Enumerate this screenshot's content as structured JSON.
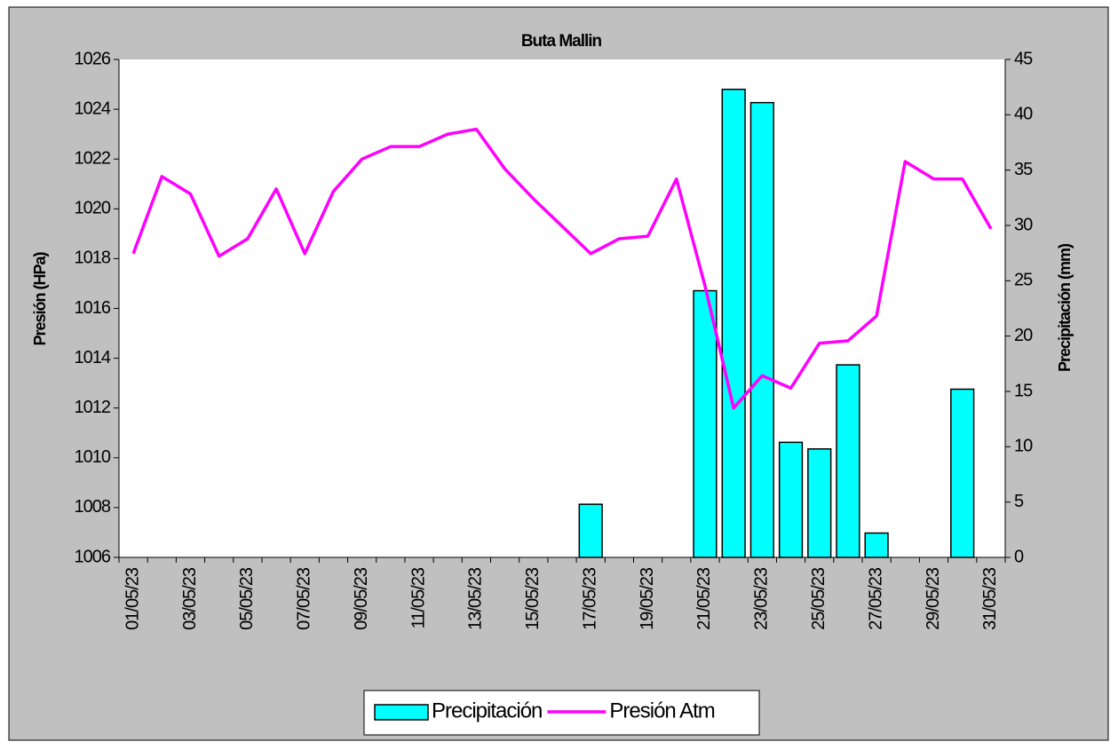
{
  "chart_data": {
    "type": "bar-line",
    "title": "Buta Mallin",
    "y_label": "Presión (HPa)",
    "y2_label": "Precipitación (mm)",
    "categories": [
      "01/05/23",
      null,
      "03/05/23",
      null,
      "05/05/23",
      null,
      "07/05/23",
      null,
      "09/05/23",
      null,
      "11/05/23",
      null,
      "13/05/23",
      null,
      "15/05/23",
      null,
      "17/05/23",
      null,
      "19/05/23",
      null,
      "21/05/23",
      null,
      "23/05/23",
      null,
      "25/05/23",
      null,
      "27/05/23",
      null,
      "29/05/23",
      null,
      "31/05/23"
    ],
    "series": [
      {
        "name": "Precipitación",
        "type": "bar",
        "axis": "y2",
        "color": "#00ffff",
        "values": [
          0,
          0,
          0,
          0,
          0,
          0,
          0,
          0,
          0,
          0,
          0,
          0,
          0,
          0,
          0,
          0,
          4.8,
          0,
          0,
          0,
          24.1,
          42.3,
          41.1,
          10.4,
          9.8,
          17.4,
          2.2,
          0,
          0,
          15.2,
          0
        ]
      },
      {
        "name": "Presión Atm",
        "type": "line",
        "axis": "y",
        "color": "#ff00ff",
        "values": [
          1018.2,
          1021.3,
          1020.6,
          1018.1,
          1018.8,
          1020.8,
          1018.2,
          1020.7,
          1022.0,
          1022.5,
          1022.5,
          1023.0,
          1023.2,
          1021.6,
          1020.4,
          1019.3,
          1018.2,
          1018.8,
          1018.9,
          1021.2,
          1016.9,
          1012.0,
          1013.3,
          1012.8,
          1014.6,
          1014.7,
          1015.7,
          1021.9,
          1021.2,
          1021.2,
          1019.2
        ]
      }
    ],
    "ylim": [
      1006,
      1026
    ],
    "yticks": [
      1006,
      1008,
      1010,
      1012,
      1014,
      1016,
      1018,
      1020,
      1022,
      1024,
      1026
    ],
    "y2lim": [
      0,
      45
    ],
    "y2ticks": [
      0,
      5,
      10,
      15,
      20,
      25,
      30,
      35,
      40,
      45
    ],
    "grid": false
  }
}
